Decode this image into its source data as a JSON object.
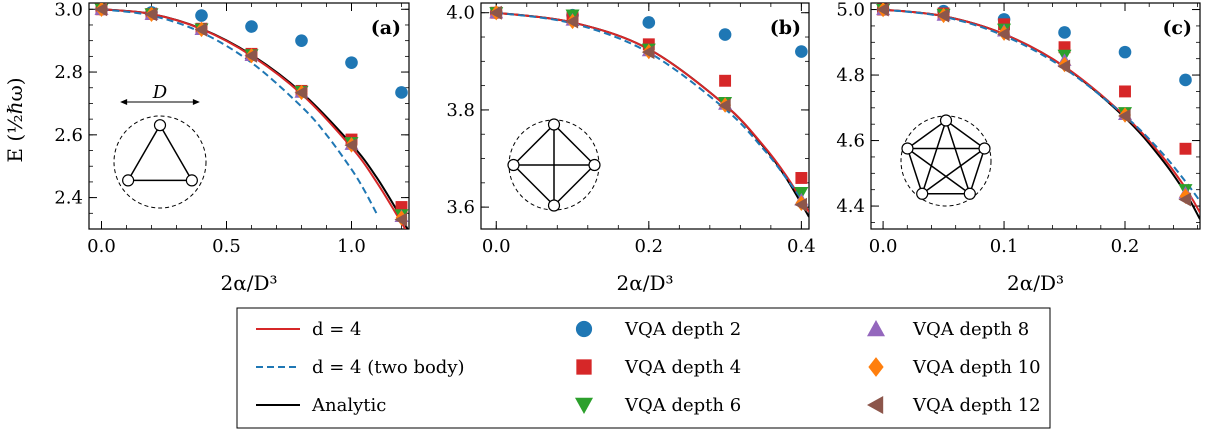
{
  "figure": {
    "ylabel": "E (½ℏω)",
    "legend": [
      {
        "label": "d = 4",
        "kind": "line",
        "color": "#d62728",
        "dash": false
      },
      {
        "label": "d = 4 (two body)",
        "kind": "line",
        "color": "#1f77b4",
        "dash": true
      },
      {
        "label": "Analytic",
        "kind": "line",
        "color": "#000000",
        "dash": false
      },
      {
        "label": "VQA depth 2",
        "kind": "marker",
        "marker": "circle",
        "color": "#1f77b4"
      },
      {
        "label": "VQA depth 4",
        "kind": "marker",
        "marker": "square",
        "color": "#d62728"
      },
      {
        "label": "VQA depth 6",
        "kind": "marker",
        "marker": "triangle-down",
        "color": "#2ca02c"
      },
      {
        "label": "VQA depth 8",
        "kind": "marker",
        "marker": "triangle-up",
        "color": "#9467bd"
      },
      {
        "label": "VQA depth 10",
        "kind": "marker",
        "marker": "diamond",
        "color": "#ff7f0e"
      },
      {
        "label": "VQA depth 12",
        "kind": "marker",
        "marker": "triangle-left",
        "color": "#8c564b"
      }
    ]
  },
  "chart_data": [
    {
      "type": "scatter",
      "panel": "(a)",
      "xlabel": "2α/D³",
      "ylabel": "E (½ℏω)",
      "xlim": [
        -0.05,
        1.23
      ],
      "ylim": [
        2.3,
        3.02
      ],
      "xticks": [
        0.0,
        0.5,
        1.0
      ],
      "xtick_labels": [
        "0.0",
        "0.5",
        "1.0"
      ],
      "yticks": [
        2.4,
        2.6,
        2.8,
        3.0
      ],
      "ytick_labels": [
        "2.4",
        "2.6",
        "2.8",
        "3.0"
      ],
      "inset": "triangle",
      "inset_label": "D",
      "lines": [
        {
          "name": "Analytic",
          "x": [
            0,
            0.2,
            0.4,
            0.6,
            0.8,
            1.0,
            1.1,
            1.2,
            1.23
          ],
          "y": [
            3.0,
            2.985,
            2.938,
            2.855,
            2.735,
            2.57,
            2.465,
            2.335,
            2.29
          ]
        },
        {
          "name": "d = 4",
          "x": [
            0,
            0.2,
            0.4,
            0.6,
            0.8,
            1.0,
            1.1,
            1.2,
            1.23
          ],
          "y": [
            3.0,
            2.985,
            2.937,
            2.852,
            2.73,
            2.56,
            2.45,
            2.32,
            2.28
          ]
        },
        {
          "name": "d = 4 (two body)",
          "x": [
            0,
            0.2,
            0.4,
            0.6,
            0.8,
            0.9,
            1.0,
            1.05,
            1.1
          ],
          "y": [
            3.0,
            2.98,
            2.926,
            2.83,
            2.69,
            2.6,
            2.49,
            2.425,
            2.35
          ]
        }
      ],
      "points": [
        {
          "series": "VQA depth 2",
          "x": [
            0,
            0.2,
            0.4,
            0.6,
            0.8,
            1.0,
            1.2
          ],
          "y": [
            3.0,
            2.99,
            2.98,
            2.945,
            2.9,
            2.83,
            2.735
          ]
        },
        {
          "series": "VQA depth 4",
          "x": [
            0,
            0.2,
            0.4,
            0.6,
            0.8,
            1.0,
            1.2
          ],
          "y": [
            3.0,
            2.985,
            2.938,
            2.858,
            2.74,
            2.585,
            2.37
          ]
        },
        {
          "series": "VQA depth 6",
          "x": [
            0,
            0.2,
            0.4,
            0.6,
            0.8,
            1.0,
            1.2
          ],
          "y": [
            3.0,
            2.985,
            2.937,
            2.855,
            2.738,
            2.575,
            2.345
          ]
        },
        {
          "series": "VQA depth 8",
          "x": [
            0,
            0.2,
            0.4,
            0.6,
            0.8,
            1.0,
            1.2
          ],
          "y": [
            3.0,
            2.984,
            2.936,
            2.853,
            2.736,
            2.57,
            2.34
          ]
        },
        {
          "series": "VQA depth 10",
          "x": [
            0,
            0.2,
            0.4,
            0.6,
            0.8,
            1.0,
            1.2
          ],
          "y": [
            3.0,
            2.984,
            2.936,
            2.852,
            2.735,
            2.568,
            2.335
          ]
        },
        {
          "series": "VQA depth 12",
          "x": [
            0,
            0.2,
            0.4,
            0.6,
            0.8,
            1.0,
            1.2
          ],
          "y": [
            3.0,
            2.984,
            2.935,
            2.852,
            2.734,
            2.567,
            2.33
          ]
        }
      ]
    },
    {
      "type": "scatter",
      "panel": "(b)",
      "xlabel": "2α/D³",
      "xlim": [
        -0.02,
        0.41
      ],
      "ylim": [
        3.555,
        4.02
      ],
      "xticks": [
        0.0,
        0.2,
        0.4
      ],
      "xtick_labels": [
        "0.0",
        "0.2",
        "0.4"
      ],
      "yticks": [
        3.6,
        3.8,
        4.0
      ],
      "ytick_labels": [
        "3.6",
        "3.8",
        "4.0"
      ],
      "inset": "square",
      "lines": [
        {
          "name": "Analytic",
          "x": [
            0,
            0.1,
            0.2,
            0.3,
            0.35,
            0.38,
            0.41
          ],
          "y": [
            4.0,
            3.98,
            3.925,
            3.81,
            3.725,
            3.66,
            3.58
          ]
        },
        {
          "name": "d = 4",
          "x": [
            0,
            0.1,
            0.2,
            0.3,
            0.35,
            0.38,
            0.41
          ],
          "y": [
            4.0,
            3.98,
            3.925,
            3.81,
            3.727,
            3.665,
            3.59
          ]
        },
        {
          "name": "d = 4 (two body)",
          "x": [
            0,
            0.1,
            0.2,
            0.3,
            0.35,
            0.38,
            0.41
          ],
          "y": [
            4.0,
            3.978,
            3.918,
            3.802,
            3.72,
            3.66,
            3.595
          ]
        }
      ],
      "points": [
        {
          "series": "VQA depth 2",
          "x": [
            0,
            0.1,
            0.2,
            0.3,
            0.4
          ],
          "y": [
            4.0,
            3.995,
            3.98,
            3.955,
            3.92
          ]
        },
        {
          "series": "VQA depth 4",
          "x": [
            0,
            0.1,
            0.2,
            0.3,
            0.4
          ],
          "y": [
            4.0,
            3.99,
            3.935,
            3.86,
            3.66
          ]
        },
        {
          "series": "VQA depth 6",
          "x": [
            0,
            0.1,
            0.2,
            0.3,
            0.4
          ],
          "y": [
            4.0,
            3.995,
            3.925,
            3.815,
            3.63
          ]
        },
        {
          "series": "VQA depth 8",
          "x": [
            0,
            0.1,
            0.2,
            0.3,
            0.4
          ],
          "y": [
            4.0,
            3.985,
            3.922,
            3.812,
            3.615
          ]
        },
        {
          "series": "VQA depth 10",
          "x": [
            0,
            0.1,
            0.2,
            0.3,
            0.4
          ],
          "y": [
            4.0,
            3.982,
            3.92,
            3.81,
            3.608
          ]
        },
        {
          "series": "VQA depth 12",
          "x": [
            0,
            0.1,
            0.2,
            0.3,
            0.4
          ],
          "y": [
            4.0,
            3.982,
            3.919,
            3.809,
            3.605
          ]
        }
      ]
    },
    {
      "type": "scatter",
      "panel": "(c)",
      "xlabel": "2α/D³",
      "xlim": [
        -0.01,
        0.262
      ],
      "ylim": [
        4.33,
        5.02
      ],
      "xticks": [
        0.0,
        0.1,
        0.2
      ],
      "xtick_labels": [
        "0.0",
        "0.1",
        "0.2"
      ],
      "yticks": [
        4.4,
        4.6,
        4.8,
        5.0
      ],
      "ytick_labels": [
        "4.4",
        "4.6",
        "4.8",
        "5.0"
      ],
      "inset": "pentagon",
      "lines": [
        {
          "name": "Analytic",
          "x": [
            0,
            0.05,
            0.1,
            0.15,
            0.2,
            0.23,
            0.25,
            0.262
          ],
          "y": [
            5.0,
            4.98,
            4.925,
            4.825,
            4.67,
            4.545,
            4.44,
            4.36
          ]
        },
        {
          "name": "d = 4",
          "x": [
            0,
            0.05,
            0.1,
            0.15,
            0.2,
            0.23,
            0.25,
            0.262
          ],
          "y": [
            5.0,
            4.98,
            4.925,
            4.826,
            4.675,
            4.555,
            4.455,
            4.38
          ]
        },
        {
          "name": "d = 4 (two body)",
          "x": [
            0,
            0.05,
            0.1,
            0.15,
            0.2,
            0.23,
            0.25,
            0.262
          ],
          "y": [
            5.0,
            4.978,
            4.92,
            4.82,
            4.675,
            4.565,
            4.475,
            4.415
          ]
        }
      ],
      "points": [
        {
          "series": "VQA depth 2",
          "x": [
            0,
            0.05,
            0.1,
            0.15,
            0.2,
            0.25
          ],
          "y": [
            5.0,
            4.995,
            4.97,
            4.93,
            4.87,
            4.785
          ]
        },
        {
          "series": "VQA depth 4",
          "x": [
            0,
            0.05,
            0.1,
            0.15,
            0.2,
            0.25
          ],
          "y": [
            5.0,
            4.988,
            4.955,
            4.885,
            4.75,
            4.575
          ]
        },
        {
          "series": "VQA depth 6",
          "x": [
            0,
            0.05,
            0.1,
            0.15,
            0.2,
            0.25
          ],
          "y": [
            5.0,
            4.985,
            4.94,
            4.86,
            4.685,
            4.45
          ]
        },
        {
          "series": "VQA depth 8",
          "x": [
            0,
            0.05,
            0.1,
            0.15,
            0.2,
            0.25
          ],
          "y": [
            5.0,
            4.983,
            4.935,
            4.845,
            4.68,
            4.44
          ]
        },
        {
          "series": "VQA depth 10",
          "x": [
            0,
            0.05,
            0.1,
            0.15,
            0.2,
            0.25
          ],
          "y": [
            5.0,
            4.982,
            4.928,
            4.832,
            4.678,
            4.43
          ]
        },
        {
          "series": "VQA depth 12",
          "x": [
            0,
            0.05,
            0.1,
            0.15,
            0.2,
            0.25
          ],
          "y": [
            5.0,
            4.982,
            4.925,
            4.826,
            4.675,
            4.42
          ]
        }
      ]
    }
  ]
}
